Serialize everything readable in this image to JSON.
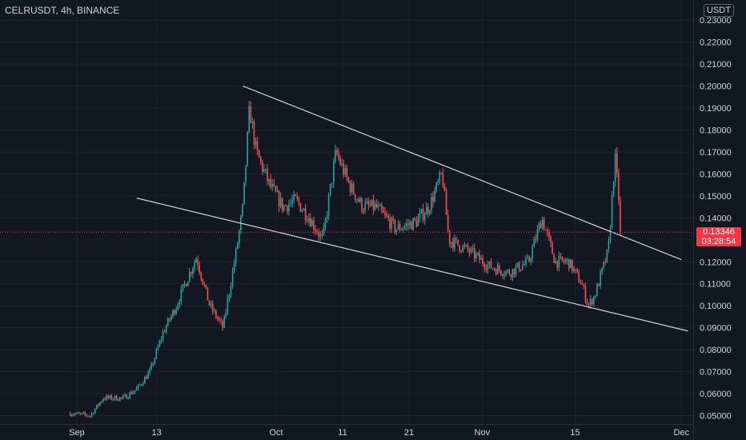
{
  "symbol_label": "CELRUSDT, 4h, BINANCE",
  "axis_unit": "USDT",
  "last_price": {
    "value": "0.13346",
    "countdown": "03:28:54",
    "color": "#f23645"
  },
  "colors": {
    "background": "#131722",
    "up": "#26a69a",
    "down": "#ef5350",
    "grid": "#1e222d",
    "trendline": "#d1d4dc",
    "price_line": "#f23645",
    "text": "#d1d4dc"
  },
  "chart_data": {
    "type": "candlestick",
    "title": "CELRUSDT, 4h, BINANCE",
    "ylabel": "USDT",
    "ylim": [
      0.045,
      0.234
    ],
    "y_ticks": [
      "0.05000",
      "0.06000",
      "0.07000",
      "0.08000",
      "0.09000",
      "0.10000",
      "0.11000",
      "0.12000",
      "0.13000",
      "0.14000",
      "0.15000",
      "0.16000",
      "0.17000",
      "0.18000",
      "0.19000",
      "0.20000",
      "0.21000",
      "0.22000",
      "0.23000"
    ],
    "x_ticks": [
      "Sep",
      "13",
      "Oct",
      "11",
      "21",
      "Nov",
      "15",
      "Dec"
    ],
    "grid": true,
    "last_price": 0.13346,
    "trendlines": [
      {
        "name": "upper",
        "from": [
          "Sep 26",
          0.2
        ],
        "to": [
          "Dec 1",
          0.121
        ]
      },
      {
        "name": "lower",
        "from": [
          "Sep 10",
          0.149
        ],
        "to": [
          "Dec 2",
          0.0885
        ]
      }
    ],
    "price_path": [
      [
        "Aug 31",
        0.051
      ],
      [
        "Sep 3",
        0.05
      ],
      [
        "Sep 5",
        0.058
      ],
      [
        "Sep 8",
        0.058
      ],
      [
        "Sep 10",
        0.062
      ],
      [
        "Sep 12",
        0.07
      ],
      [
        "Sep 14",
        0.088
      ],
      [
        "Sep 16",
        0.1
      ],
      [
        "Sep 17",
        0.108
      ],
      [
        "Sep 19",
        0.122
      ],
      [
        "Sep 21",
        0.1
      ],
      [
        "Sep 23",
        0.09
      ],
      [
        "Sep 25",
        0.125
      ],
      [
        "Sep 26",
        0.145
      ],
      [
        "Sep 27",
        0.19
      ],
      [
        "Sep 28",
        0.17
      ],
      [
        "Sep 30",
        0.155
      ],
      [
        "Oct 2",
        0.145
      ],
      [
        "Oct 4",
        0.148
      ],
      [
        "Oct 6",
        0.14
      ],
      [
        "Oct 8",
        0.13
      ],
      [
        "Oct 10",
        0.17
      ],
      [
        "Oct 12",
        0.155
      ],
      [
        "Oct 14",
        0.145
      ],
      [
        "Oct 16",
        0.145
      ],
      [
        "Oct 19",
        0.135
      ],
      [
        "Oct 22",
        0.138
      ],
      [
        "Oct 24",
        0.145
      ],
      [
        "Oct 26",
        0.16
      ],
      [
        "Oct 27",
        0.13
      ],
      [
        "Oct 30",
        0.125
      ],
      [
        "Nov 2",
        0.118
      ],
      [
        "Nov 5",
        0.115
      ],
      [
        "Nov 8",
        0.12
      ],
      [
        "Nov 10",
        0.14
      ],
      [
        "Nov 12",
        0.12
      ],
      [
        "Nov 14",
        0.12
      ],
      [
        "Nov 16",
        0.11
      ],
      [
        "Nov 17",
        0.1
      ],
      [
        "Nov 18",
        0.105
      ],
      [
        "Nov 19",
        0.115
      ],
      [
        "Nov 20",
        0.125
      ],
      [
        "Nov 21",
        0.168
      ],
      [
        "Nov 22",
        0.13346
      ]
    ]
  }
}
